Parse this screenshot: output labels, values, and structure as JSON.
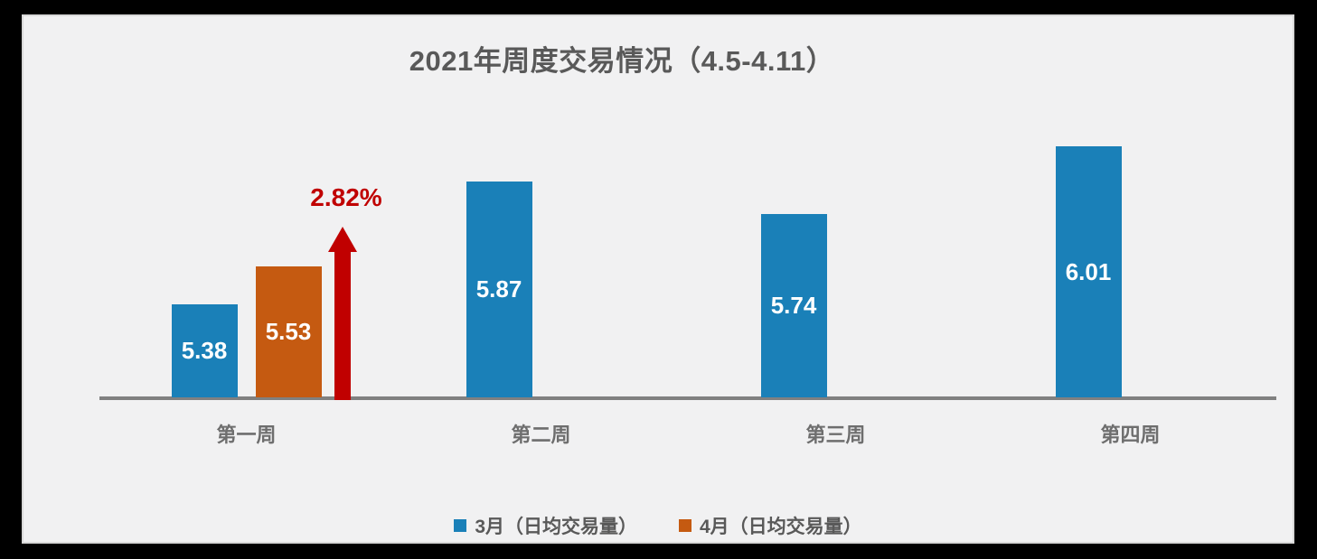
{
  "frame": {
    "background_color": "#000000",
    "panel_background": "#F1F1F2",
    "panel_border_color": "#D9D9D9"
  },
  "title": "2021年周度交易情况（4.5-4.11）",
  "title_color": "#595959",
  "legend": {
    "items": [
      {
        "label": "3月（日均交易量）",
        "color": "#1A80B8"
      },
      {
        "label": "4月（日均交易量）",
        "color": "#C55A11"
      }
    ]
  },
  "chart_data": {
    "type": "bar",
    "title": "2021年周度交易情况（4.5-4.11）",
    "categories": [
      "第一周",
      "第二周",
      "第三周",
      "第四周"
    ],
    "series": [
      {
        "name": "3月（日均交易量）",
        "color": "#1A80B8",
        "values": [
          5.38,
          5.87,
          5.74,
          6.01
        ]
      },
      {
        "name": "4月（日均交易量）",
        "color": "#C55A11",
        "values": [
          5.53,
          null,
          null,
          null
        ]
      }
    ],
    "data_labels": true,
    "data_label_color": "#FFFFFF",
    "annotations": [
      {
        "category_index": 0,
        "text": "2.82%",
        "shape": "up-arrow",
        "color": "#C00000"
      }
    ],
    "xlabel": "",
    "ylabel": "",
    "ylim": [
      5.01,
      6.6
    ],
    "grid": false,
    "axis_line_color": "#808080",
    "x_tick_label_color": "#6E6E6E",
    "legend_position": "bottom"
  }
}
